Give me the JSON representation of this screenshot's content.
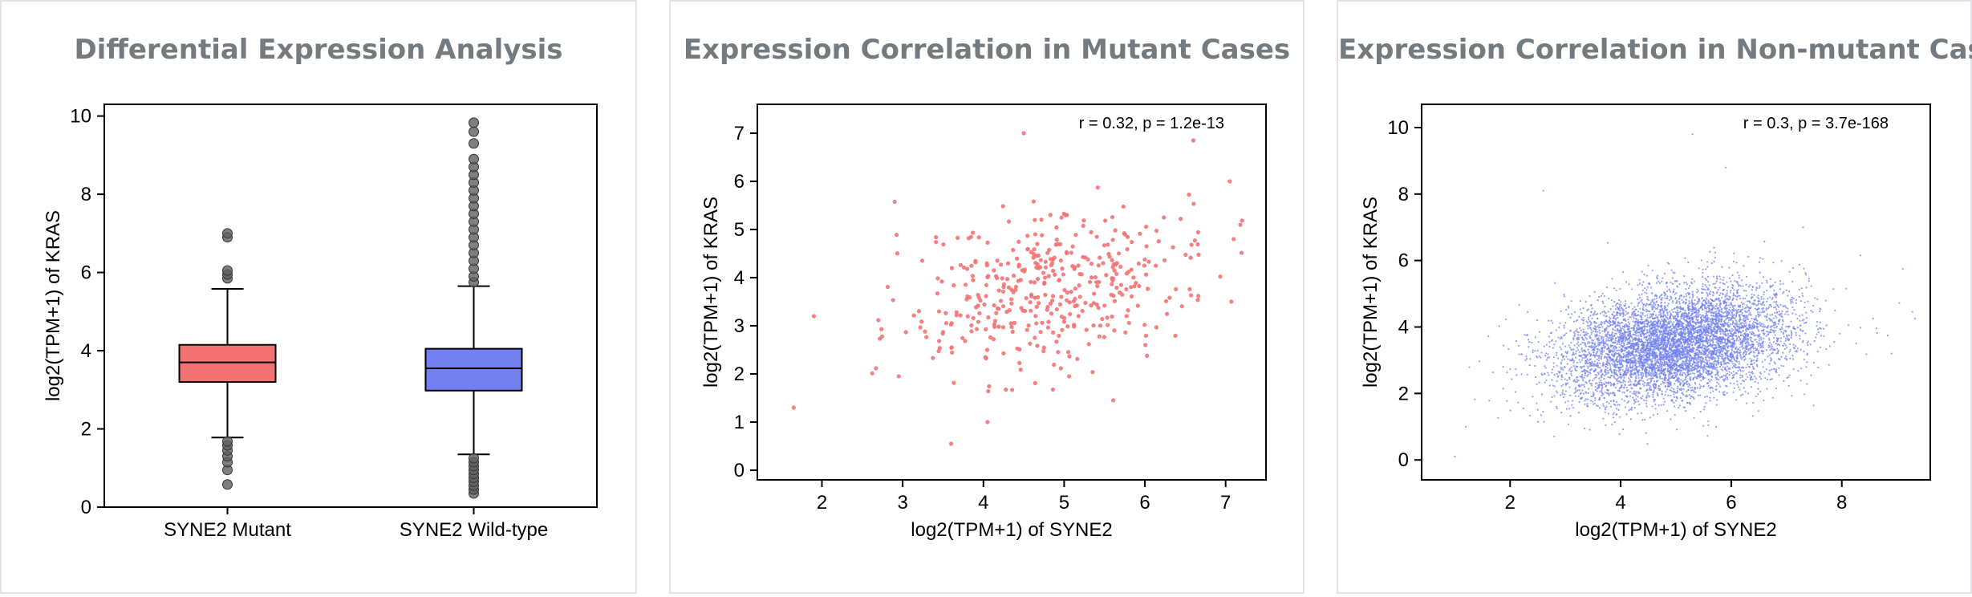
{
  "panels": [
    {
      "title": "Differential Expression Analysis"
    },
    {
      "title": "Expression Correlation in Mutant Cases"
    },
    {
      "title": "Expression Correlation in Non-mutant Cases"
    }
  ],
  "colors": {
    "mutant": "#f47274",
    "wildtype": "#7381f0",
    "outlier": "#5f5f5f",
    "panel_border": "#e1e3e6",
    "title": "#737a80"
  },
  "chart_data": [
    {
      "type": "box",
      "xlabel": "",
      "ylabel": "log2(TPM+1) of KRAS",
      "ylim": [
        0,
        10.3
      ],
      "yticks": [
        0,
        2,
        4,
        6,
        8,
        10
      ],
      "categories": [
        "SYNE2 Mutant",
        "SYNE2 Wild-type"
      ],
      "boxes": [
        {
          "name": "SYNE2 Mutant",
          "whisker_low": 1.78,
          "q1": 3.2,
          "median": 3.7,
          "q3": 4.15,
          "whisker_high": 5.58,
          "outliers": [
            0.58,
            0.95,
            1.15,
            1.3,
            1.45,
            1.58,
            1.68,
            5.85,
            5.95,
            6.05,
            6.9,
            7.0
          ]
        },
        {
          "name": "SYNE2 Wild-type",
          "whisker_low": 1.35,
          "q1": 2.98,
          "median": 3.55,
          "q3": 4.05,
          "whisker_high": 5.65,
          "outliers": [
            0.35,
            0.45,
            0.55,
            0.65,
            0.75,
            0.85,
            0.95,
            1.05,
            1.15,
            1.25,
            5.75,
            5.9,
            6.1,
            6.3,
            6.5,
            6.7,
            6.9,
            7.1,
            7.3,
            7.5,
            7.7,
            7.9,
            8.1,
            8.3,
            8.5,
            8.7,
            8.9,
            9.3,
            9.6,
            9.83
          ]
        }
      ]
    },
    {
      "type": "scatter",
      "xlabel": "log2(TPM+1) of SYNE2",
      "ylabel": "log2(TPM+1) of KRAS",
      "xlim": [
        1.2,
        7.5
      ],
      "ylim": [
        -0.2,
        7.6
      ],
      "xticks": [
        2,
        3,
        4,
        5,
        6,
        7
      ],
      "yticks": [
        0,
        1,
        2,
        3,
        4,
        5,
        6,
        7
      ],
      "annotation": "r = 0.32, p = 1.2e-13",
      "series": [
        {
          "n_points": 420,
          "x_center": 4.9,
          "x_sd": 0.9,
          "y_center": 3.75,
          "y_sd": 0.85,
          "r": 0.32
        }
      ],
      "highlighted_points": [
        [
          1.65,
          1.3
        ],
        [
          3.6,
          0.55
        ],
        [
          4.05,
          1.0
        ],
        [
          6.6,
          6.85
        ],
        [
          7.05,
          6.0
        ],
        [
          4.5,
          7.0
        ],
        [
          1.9,
          3.2
        ],
        [
          7.1,
          4.8
        ]
      ]
    },
    {
      "type": "scatter",
      "xlabel": "log2(TPM+1) of SYNE2",
      "ylabel": "log2(TPM+1) of KRAS",
      "xlim": [
        0.4,
        9.6
      ],
      "ylim": [
        -0.6,
        10.7
      ],
      "xticks": [
        2,
        4,
        6,
        8
      ],
      "yticks": [
        0,
        2,
        4,
        6,
        8,
        10
      ],
      "annotation": "r = 0.3, p = 3.7e-168",
      "series": [
        {
          "n_points": 6500,
          "x_center": 5.0,
          "x_sd": 1.05,
          "y_center": 3.5,
          "y_sd": 0.85,
          "r": 0.3
        }
      ],
      "highlighted_points": [
        [
          1.0,
          0.1
        ],
        [
          2.6,
          8.1
        ],
        [
          8.9,
          3.2
        ],
        [
          5.3,
          9.8
        ],
        [
          5.9,
          8.8
        ],
        [
          7.3,
          7.0
        ],
        [
          1.2,
          1.0
        ]
      ]
    }
  ]
}
